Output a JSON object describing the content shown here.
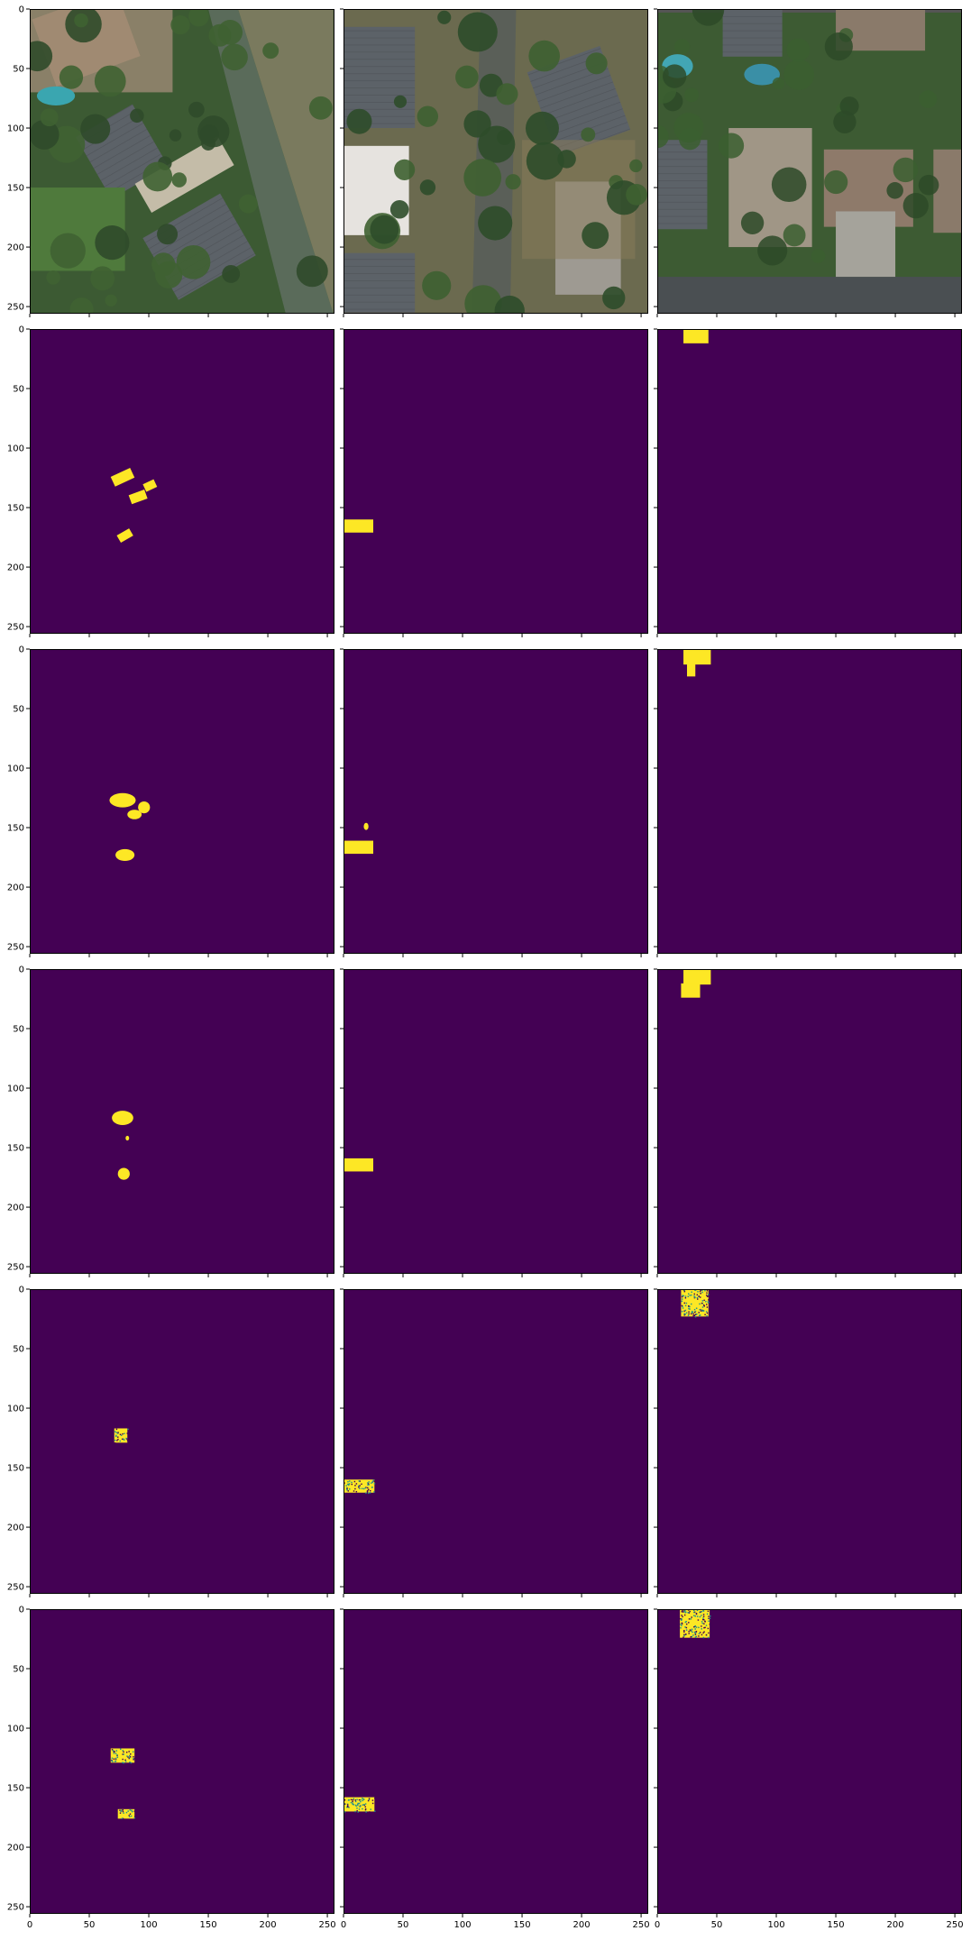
{
  "figure": {
    "rows": 6,
    "cols": 3,
    "x_tick_labels": [
      "0",
      "50",
      "100",
      "150",
      "200",
      "250"
    ],
    "y_tick_labels": [
      "0",
      "50",
      "100",
      "150",
      "200",
      "250"
    ],
    "axis_range": [
      0,
      256
    ],
    "background_colors": {
      "mask": "#440154",
      "mask_fg": "#fde725",
      "mask_edge": "#21908d"
    }
  },
  "panels": [
    {
      "row": 0,
      "col": 0,
      "kind": "aerial",
      "scene": "aerial-a"
    },
    {
      "row": 0,
      "col": 1,
      "kind": "aerial",
      "scene": "aerial-b"
    },
    {
      "row": 0,
      "col": 2,
      "kind": "aerial",
      "scene": "aerial-c"
    },
    {
      "row": 1,
      "col": 0,
      "kind": "mask",
      "blobs": [
        {
          "type": "rect",
          "x": 69,
          "y": 120,
          "w": 18,
          "h": 9,
          "rot": -25
        },
        {
          "type": "rect",
          "x": 96,
          "y": 128,
          "w": 10,
          "h": 7,
          "rot": -25
        },
        {
          "type": "rect",
          "x": 84,
          "y": 137,
          "w": 14,
          "h": 8,
          "rot": -20
        },
        {
          "type": "rect",
          "x": 74,
          "y": 170,
          "w": 12,
          "h": 7,
          "rot": -30
        }
      ]
    },
    {
      "row": 1,
      "col": 1,
      "kind": "mask",
      "blobs": [
        {
          "type": "rect",
          "x": 0,
          "y": 160,
          "w": 25,
          "h": 11,
          "rot": 0
        }
      ]
    },
    {
      "row": 1,
      "col": 2,
      "kind": "mask",
      "blobs": [
        {
          "type": "rect",
          "x": 22,
          "y": 0,
          "w": 21,
          "h": 12,
          "rot": 0
        }
      ]
    },
    {
      "row": 2,
      "col": 0,
      "kind": "mask",
      "blobs": [
        {
          "type": "ellipse",
          "x": 78,
          "y": 127,
          "rx": 11,
          "ry": 6
        },
        {
          "type": "ellipse",
          "x": 96,
          "y": 133,
          "rx": 5,
          "ry": 5
        },
        {
          "type": "ellipse",
          "x": 88,
          "y": 139,
          "rx": 6,
          "ry": 4
        },
        {
          "type": "ellipse",
          "x": 80,
          "y": 173,
          "rx": 8,
          "ry": 5
        }
      ]
    },
    {
      "row": 2,
      "col": 1,
      "kind": "mask",
      "blobs": [
        {
          "type": "rect",
          "x": 0,
          "y": 161,
          "w": 25,
          "h": 11,
          "rot": 0
        },
        {
          "type": "ellipse",
          "x": 19,
          "y": 149,
          "rx": 2,
          "ry": 3
        }
      ]
    },
    {
      "row": 2,
      "col": 2,
      "kind": "mask",
      "blobs": [
        {
          "type": "rect",
          "x": 22,
          "y": 0,
          "w": 23,
          "h": 13,
          "rot": 0
        },
        {
          "type": "rect",
          "x": 25,
          "y": 12,
          "w": 7,
          "h": 11,
          "rot": 0
        }
      ]
    },
    {
      "row": 3,
      "col": 0,
      "kind": "mask",
      "blobs": [
        {
          "type": "ellipse",
          "x": 78,
          "y": 125,
          "rx": 9,
          "ry": 6
        },
        {
          "type": "ellipse",
          "x": 82,
          "y": 142,
          "rx": 1.5,
          "ry": 2
        },
        {
          "type": "ellipse",
          "x": 79,
          "y": 172,
          "rx": 5,
          "ry": 5
        }
      ]
    },
    {
      "row": 3,
      "col": 1,
      "kind": "mask",
      "blobs": [
        {
          "type": "rect",
          "x": 0,
          "y": 159,
          "w": 25,
          "h": 11,
          "rot": 0
        }
      ]
    },
    {
      "row": 3,
      "col": 2,
      "kind": "mask",
      "blobs": [
        {
          "type": "rect",
          "x": 22,
          "y": 0,
          "w": 23,
          "h": 13,
          "rot": 0
        },
        {
          "type": "rect",
          "x": 20,
          "y": 12,
          "w": 16,
          "h": 12,
          "rot": 0
        }
      ]
    },
    {
      "row": 4,
      "col": 0,
      "kind": "noisy",
      "blobs": [
        {
          "x": 71,
          "y": 117,
          "w": 11,
          "h": 12
        }
      ]
    },
    {
      "row": 4,
      "col": 1,
      "kind": "noisy",
      "blobs": [
        {
          "x": 0,
          "y": 160,
          "w": 26,
          "h": 11
        }
      ]
    },
    {
      "row": 4,
      "col": 2,
      "kind": "noisy",
      "blobs": [
        {
          "x": 20,
          "y": 0,
          "w": 23,
          "h": 23
        }
      ]
    },
    {
      "row": 5,
      "col": 0,
      "kind": "noisy",
      "blobs": [
        {
          "x": 68,
          "y": 117,
          "w": 20,
          "h": 12
        },
        {
          "x": 74,
          "y": 168,
          "w": 14,
          "h": 8
        }
      ]
    },
    {
      "row": 5,
      "col": 1,
      "kind": "noisy",
      "blobs": [
        {
          "x": 0,
          "y": 158,
          "w": 26,
          "h": 12
        }
      ]
    },
    {
      "row": 5,
      "col": 2,
      "kind": "noisy",
      "blobs": [
        {
          "x": 19,
          "y": 0,
          "w": 25,
          "h": 24
        }
      ]
    }
  ]
}
